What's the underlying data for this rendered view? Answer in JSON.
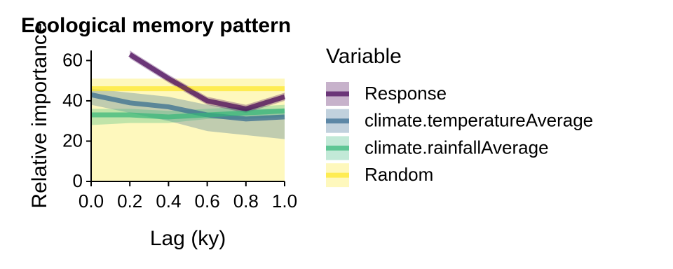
{
  "chart_data": {
    "type": "line",
    "title": "Ecological memory pattern",
    "x_label": "Lag (ky)",
    "y_label": "Relative importance",
    "legend_title": "Variable",
    "x": [
      0,
      0.2,
      0.4,
      0.6,
      0.8,
      1.0
    ],
    "xlim": [
      0,
      1
    ],
    "ylim": [
      0,
      65
    ],
    "xticks": [
      {
        "value": 0,
        "label": "0.0"
      },
      0.2,
      0.4,
      0.6,
      0.8,
      {
        "value": 1,
        "label": "1.0"
      }
    ],
    "yticks": [
      0,
      20,
      40,
      60
    ],
    "series": [
      {
        "name": "Random",
        "color": "#fde725",
        "values": [
          46,
          46,
          46,
          46,
          46,
          46
        ],
        "lower": [
          0,
          0,
          0,
          0,
          0,
          0
        ],
        "upper": [
          51,
          51,
          51,
          51,
          51,
          51
        ]
      },
      {
        "name": "climate.temperatureAverage",
        "color": "#31688e",
        "values": [
          43,
          39,
          37,
          33,
          31,
          32
        ],
        "lower": [
          38,
          34,
          30,
          25,
          23,
          21
        ],
        "upper": [
          46,
          44,
          42,
          38,
          36,
          36
        ]
      },
      {
        "name": "climate.rainfallAverage",
        "color": "#35b779",
        "values": [
          33,
          33,
          32,
          33,
          34,
          35
        ],
        "lower": [
          28,
          29,
          29,
          31,
          31,
          32
        ],
        "upper": [
          36,
          36,
          35,
          36,
          37,
          38
        ]
      },
      {
        "name": "Response",
        "color": "#440154",
        "values": [
          null,
          63,
          51,
          40,
          36,
          42
        ],
        "lower": [
          null,
          61,
          49,
          38,
          34,
          40
        ],
        "upper": [
          null,
          65,
          53,
          42,
          38,
          44
        ]
      }
    ],
    "legend_order": [
      "Response",
      "climate.temperatureAverage",
      "climate.rainfallAverage",
      "Random"
    ]
  }
}
